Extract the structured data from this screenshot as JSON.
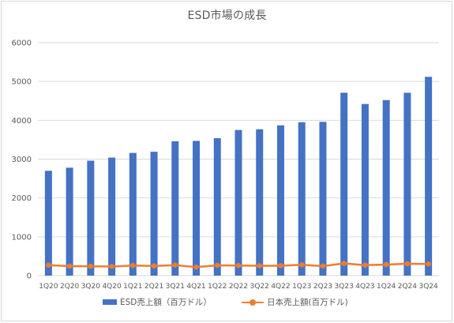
{
  "colors": {
    "bar": "#4472c4",
    "line": "#ed7d31",
    "grid": "#d9d9d9",
    "text": "#595959"
  },
  "chart_data": {
    "type": "bar",
    "title": "ESD市場の成長",
    "xlabel": "",
    "ylabel": "",
    "ylim": [
      0,
      6000
    ],
    "yticks": [
      0,
      1000,
      2000,
      3000,
      4000,
      5000,
      6000
    ],
    "grid": true,
    "legend_position": "bottom",
    "categories": [
      "1Q20",
      "2Q20",
      "3Q20",
      "4Q20",
      "1Q21",
      "2Q21",
      "3Q21",
      "4Q21",
      "1Q22",
      "2Q22",
      "3Q22",
      "4Q22",
      "1Q23",
      "2Q23",
      "3Q23",
      "4Q23",
      "1Q24",
      "2Q24",
      "3Q24"
    ],
    "series": [
      {
        "name": "ESD売上額（百万ドル）",
        "type": "bar",
        "values": [
          2700,
          2780,
          2960,
          3040,
          3160,
          3190,
          3460,
          3470,
          3540,
          3750,
          3770,
          3870,
          3950,
          3960,
          4710,
          4420,
          4520,
          4710,
          5120
        ]
      },
      {
        "name": "日本売上額(百万ドル)",
        "type": "line",
        "values": [
          270,
          245,
          240,
          235,
          260,
          250,
          270,
          220,
          265,
          260,
          255,
          255,
          280,
          245,
          315,
          270,
          285,
          305,
          300
        ]
      }
    ]
  }
}
